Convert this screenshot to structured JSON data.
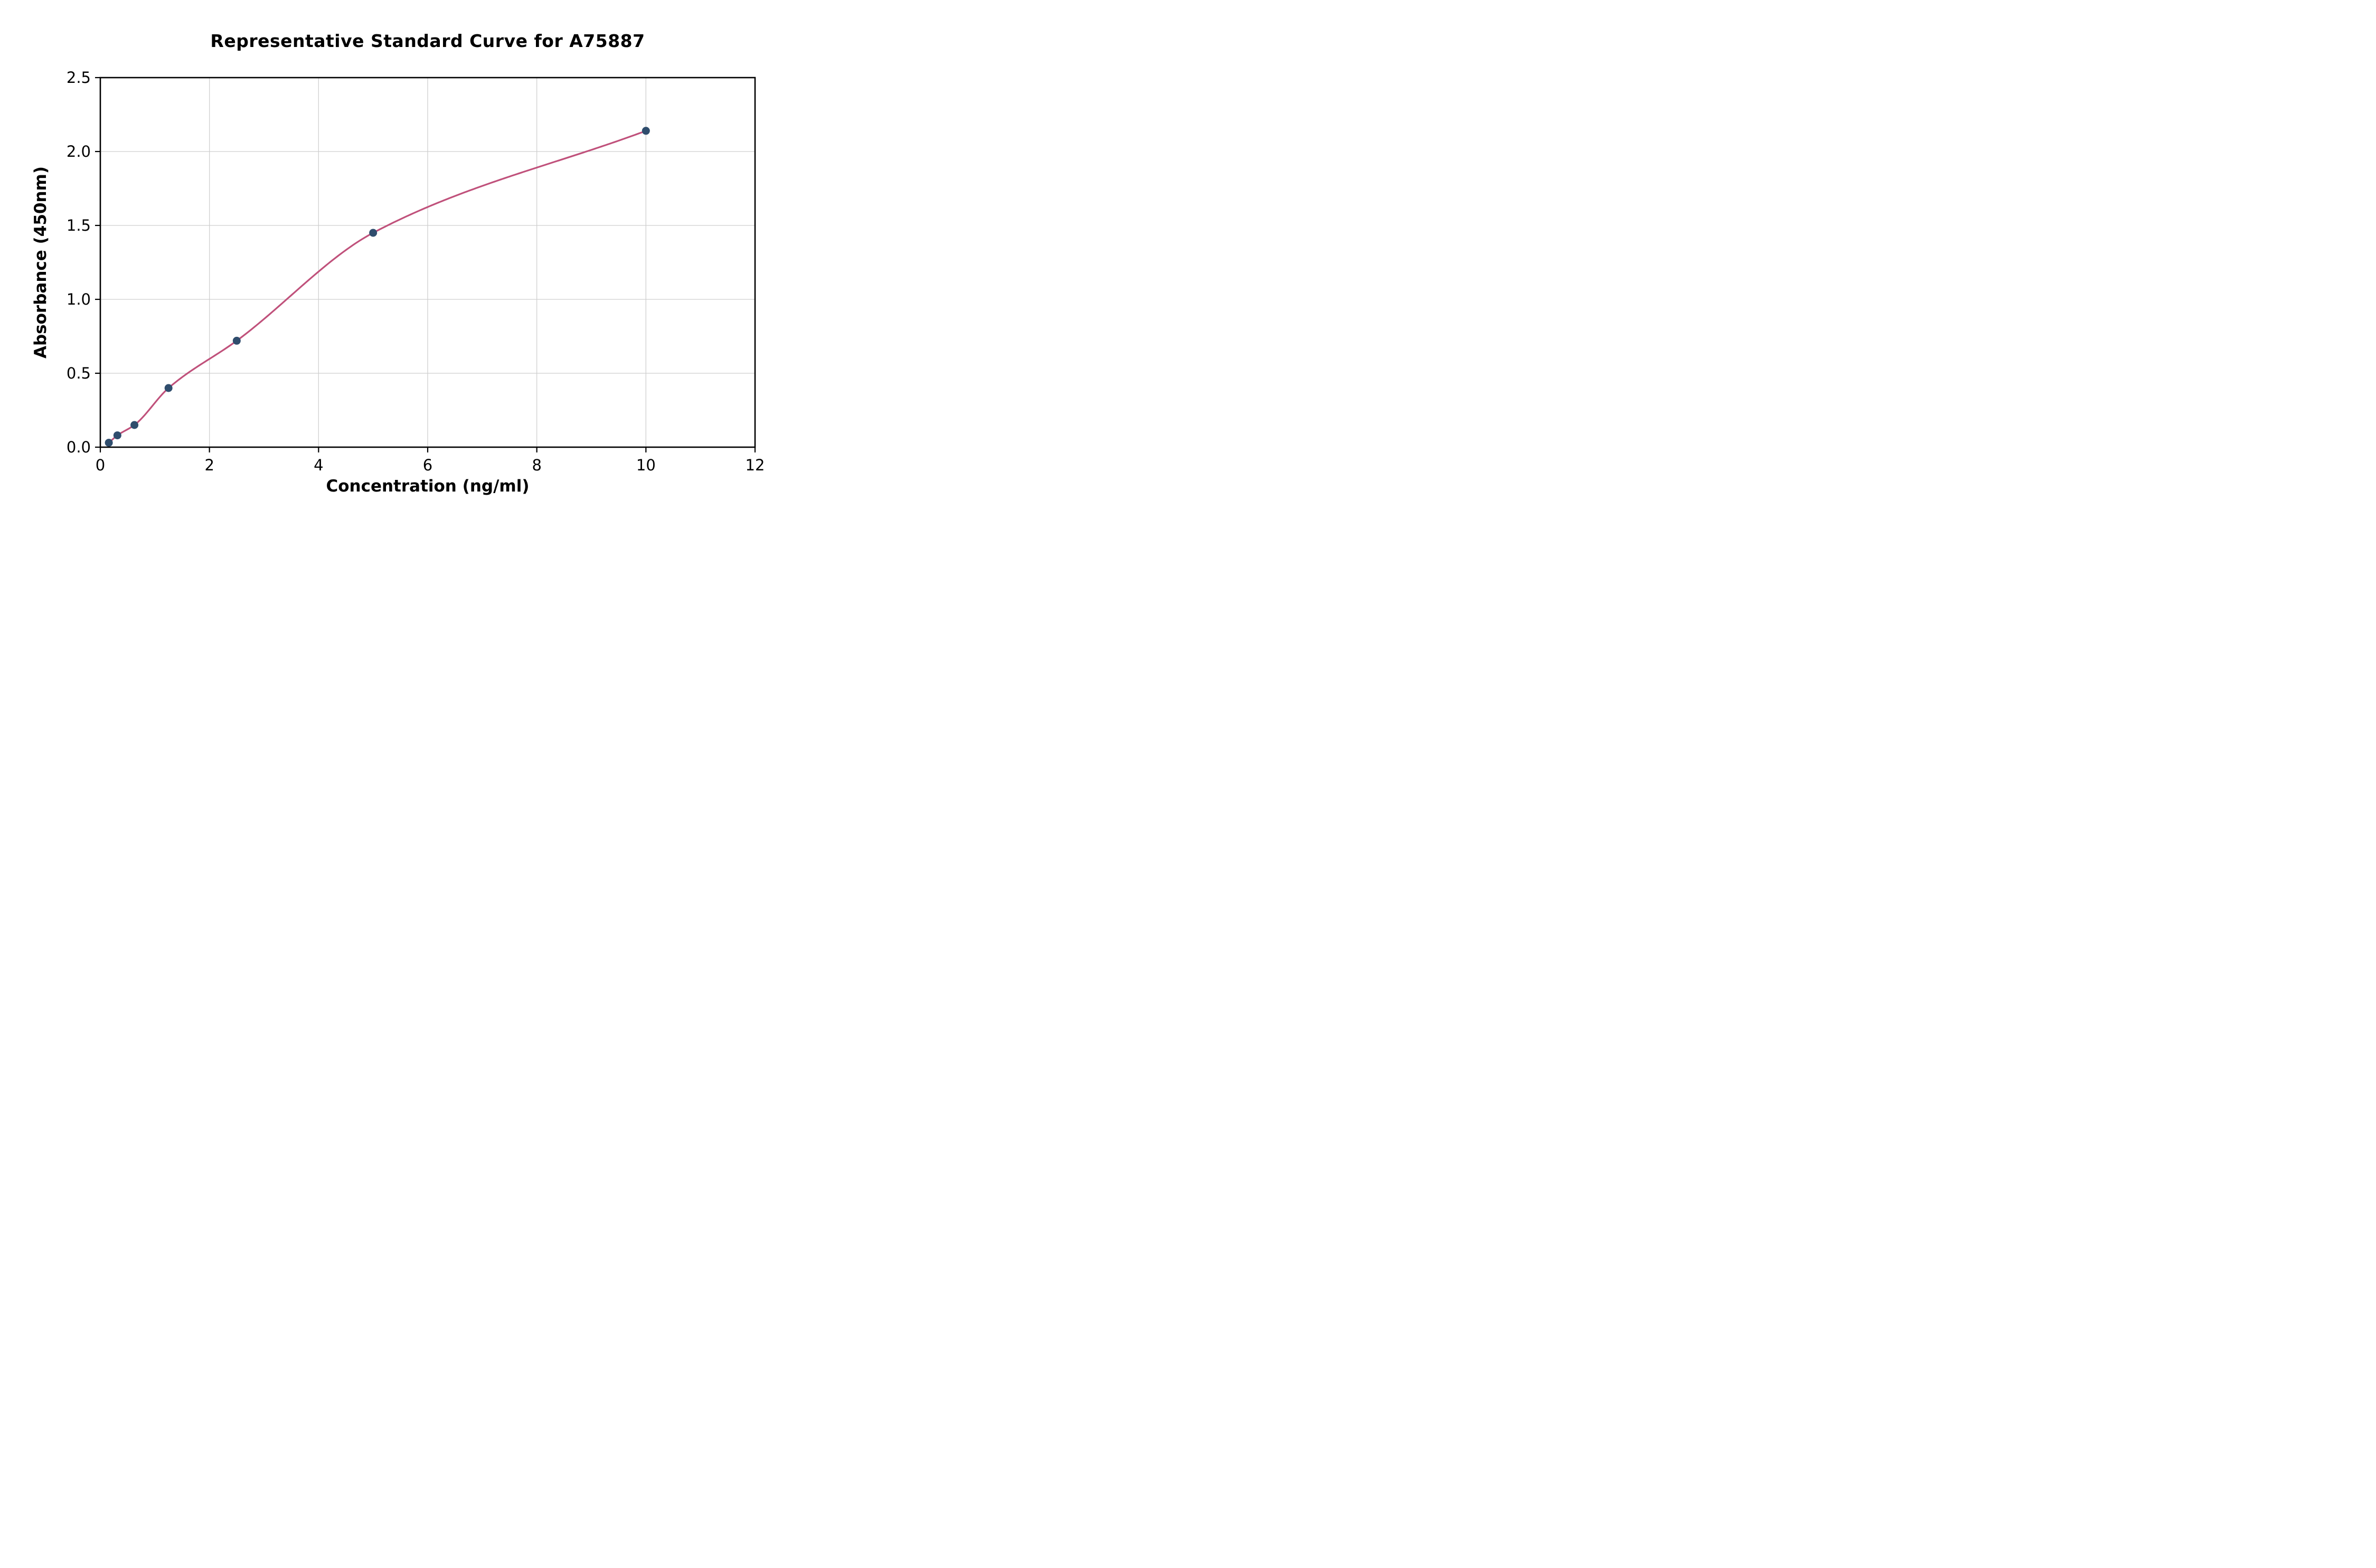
{
  "chart_data": {
    "type": "scatter",
    "title": "Representative Standard Curve for A75887",
    "xlabel": "Concentration (ng/ml)",
    "ylabel": "Absorbance (450nm)",
    "x": [
      0.156,
      0.313,
      0.625,
      1.25,
      2.5,
      5,
      10
    ],
    "y": [
      0.03,
      0.08,
      0.15,
      0.4,
      0.72,
      1.45,
      2.14
    ],
    "xlim": [
      0,
      12
    ],
    "ylim": [
      0,
      2.5
    ],
    "xticks": [
      0,
      2,
      4,
      6,
      8,
      10,
      12
    ],
    "yticks": [
      0,
      0.5,
      1,
      1.5,
      2,
      2.5
    ],
    "grid": true,
    "legend": "none",
    "fit_curve": true,
    "point_color": "#2f4d6d",
    "curve_color": "#c0517b",
    "grid_color": "#cfcfcf",
    "axis_color": "#000000"
  }
}
